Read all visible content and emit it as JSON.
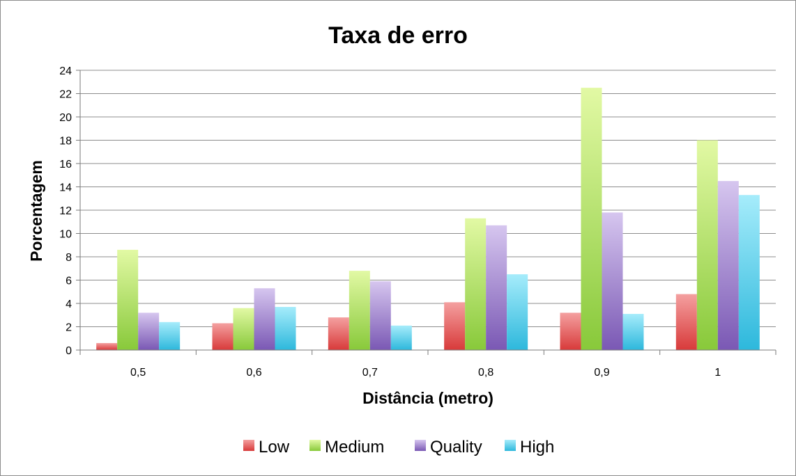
{
  "chart_data": {
    "type": "bar",
    "title": "Taxa de erro",
    "xlabel": "Distância (metro)",
    "ylabel": "Porcentagem",
    "categories": [
      "0,5",
      "0,6",
      "0,7",
      "0,8",
      "0,9",
      "1"
    ],
    "ylim": [
      0,
      24
    ],
    "yticks": [
      "0",
      "2",
      "4",
      "6",
      "8",
      "10",
      "12",
      "14",
      "16",
      "18",
      "20",
      "22",
      "24"
    ],
    "grid": true,
    "legend_position": "bottom",
    "series": [
      {
        "name": "Low",
        "values": [
          0.6,
          2.3,
          2.8,
          4.1,
          3.2,
          4.8
        ],
        "color_top": "#f4a0a0",
        "color_bottom": "#d83a3a"
      },
      {
        "name": "Medium",
        "values": [
          8.6,
          3.6,
          6.8,
          11.3,
          22.5,
          18.0
        ],
        "color_top": "#e2f9a4",
        "color_bottom": "#88c93a"
      },
      {
        "name": "Quality",
        "values": [
          3.2,
          5.3,
          5.9,
          10.7,
          11.8,
          14.5
        ],
        "color_top": "#d6c6ef",
        "color_bottom": "#7a58b4"
      },
      {
        "name": "High",
        "values": [
          2.4,
          3.7,
          2.1,
          6.5,
          3.1,
          13.3
        ],
        "color_top": "#a6ecfb",
        "color_bottom": "#2db8dc"
      }
    ]
  }
}
